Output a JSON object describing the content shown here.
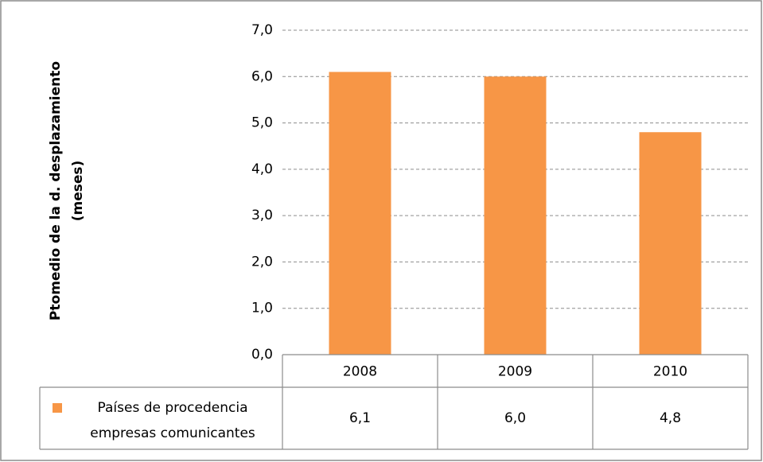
{
  "chart_data": {
    "type": "bar",
    "ylabel": [
      "Ptomedio de la d. desplazamiento",
      "(meses)"
    ],
    "categories": [
      "2008",
      "2009",
      "2010"
    ],
    "series": [
      {
        "name": "Países de procedencia empresas comunicantes",
        "color": "#f79646",
        "values": [
          6.1,
          6.0,
          4.8
        ],
        "value_labels": [
          "6,1",
          "6,0",
          "4,8"
        ]
      }
    ],
    "ylim": [
      0,
      7
    ],
    "yticks": [
      {
        "value": 0,
        "label": "0,0"
      },
      {
        "value": 1,
        "label": "1,0"
      },
      {
        "value": 2,
        "label": "2,0"
      },
      {
        "value": 3,
        "label": "3,0"
      },
      {
        "value": 4,
        "label": "4,0"
      },
      {
        "value": 5,
        "label": "5,0"
      },
      {
        "value": 6,
        "label": "6,0"
      },
      {
        "value": 7,
        "label": "7,0"
      }
    ],
    "grid": true
  }
}
